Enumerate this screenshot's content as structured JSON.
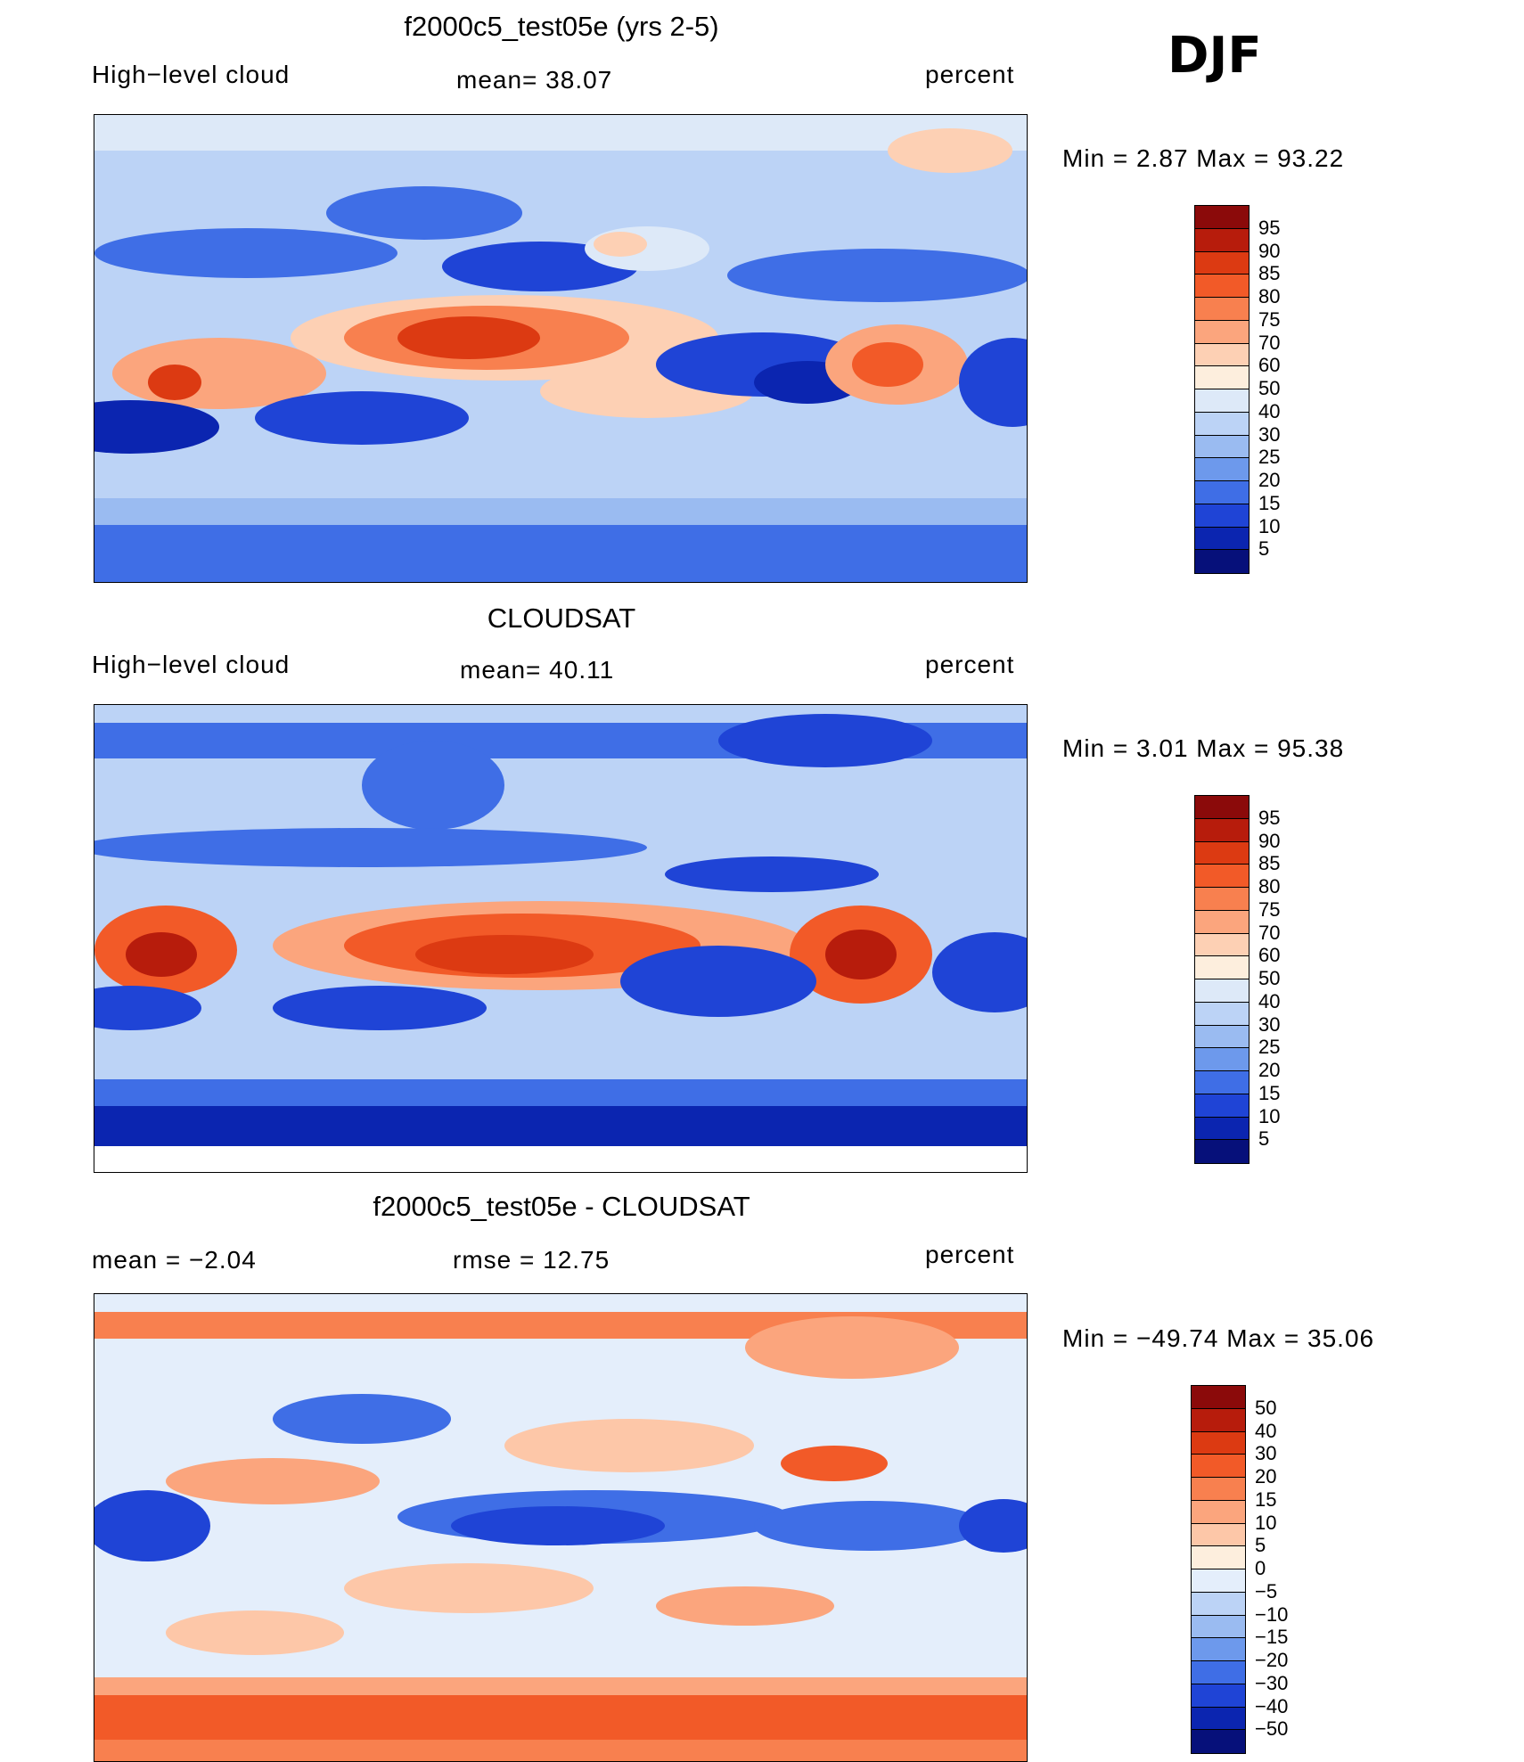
{
  "season": "DJF",
  "panels": [
    {
      "title": "f2000c5_test05e (yrs 2-5)",
      "left_label": "High−level cloud",
      "center_label": "mean=   38.07",
      "right_label": "percent",
      "minmax": "Min  =     2.87  Max  =    93.22",
      "colorbar": {
        "labels": [
          "95",
          "90",
          "85",
          "80",
          "75",
          "70",
          "60",
          "50",
          "40",
          "30",
          "25",
          "20",
          "15",
          "10",
          "5"
        ],
        "colors": [
          "#8b0a0a",
          "#b71c0c",
          "#dc3a12",
          "#f25a28",
          "#f8804f",
          "#fba57d",
          "#fdd0b4",
          "#fdeedd",
          "#dde9f8",
          "#bcd3f6",
          "#9abbf1",
          "#6d99ec",
          "#3f6ee6",
          "#1f44d6",
          "#0b25b0",
          "#06107a"
        ]
      }
    },
    {
      "title": "CLOUDSAT",
      "left_label": "High−level cloud",
      "center_label": "mean=   40.11",
      "right_label": "percent",
      "minmax": "Min  =     3.01  Max  =    95.38",
      "colorbar": {
        "labels": [
          "95",
          "90",
          "85",
          "80",
          "75",
          "70",
          "60",
          "50",
          "40",
          "30",
          "25",
          "20",
          "15",
          "10",
          "5"
        ],
        "colors": [
          "#8b0a0a",
          "#b71c0c",
          "#dc3a12",
          "#f25a28",
          "#f8804f",
          "#fba57d",
          "#fdd0b4",
          "#fdeedd",
          "#dde9f8",
          "#bcd3f6",
          "#9abbf1",
          "#6d99ec",
          "#3f6ee6",
          "#1f44d6",
          "#0b25b0",
          "#06107a"
        ]
      }
    },
    {
      "title": "f2000c5_test05e - CLOUDSAT",
      "left_label": "mean  =    −2.04",
      "center_label": "rmse  =    12.75",
      "right_label": "percent",
      "minmax": "Min  = −49.74  Max  =    35.06",
      "colorbar": {
        "labels": [
          "50",
          "40",
          "30",
          "20",
          "15",
          "10",
          "5",
          "0",
          "−5",
          "−10",
          "−15",
          "−20",
          "−30",
          "−40",
          "−50"
        ],
        "colors": [
          "#8b0a0a",
          "#b71c0c",
          "#dc3a12",
          "#f25a28",
          "#f8804f",
          "#fba57d",
          "#fdc7a8",
          "#fdeedd",
          "#e4eefb",
          "#bcd3f6",
          "#9abbf1",
          "#6d99ec",
          "#3f6ee6",
          "#1f44d6",
          "#0b25b0",
          "#06107a"
        ]
      }
    }
  ]
}
